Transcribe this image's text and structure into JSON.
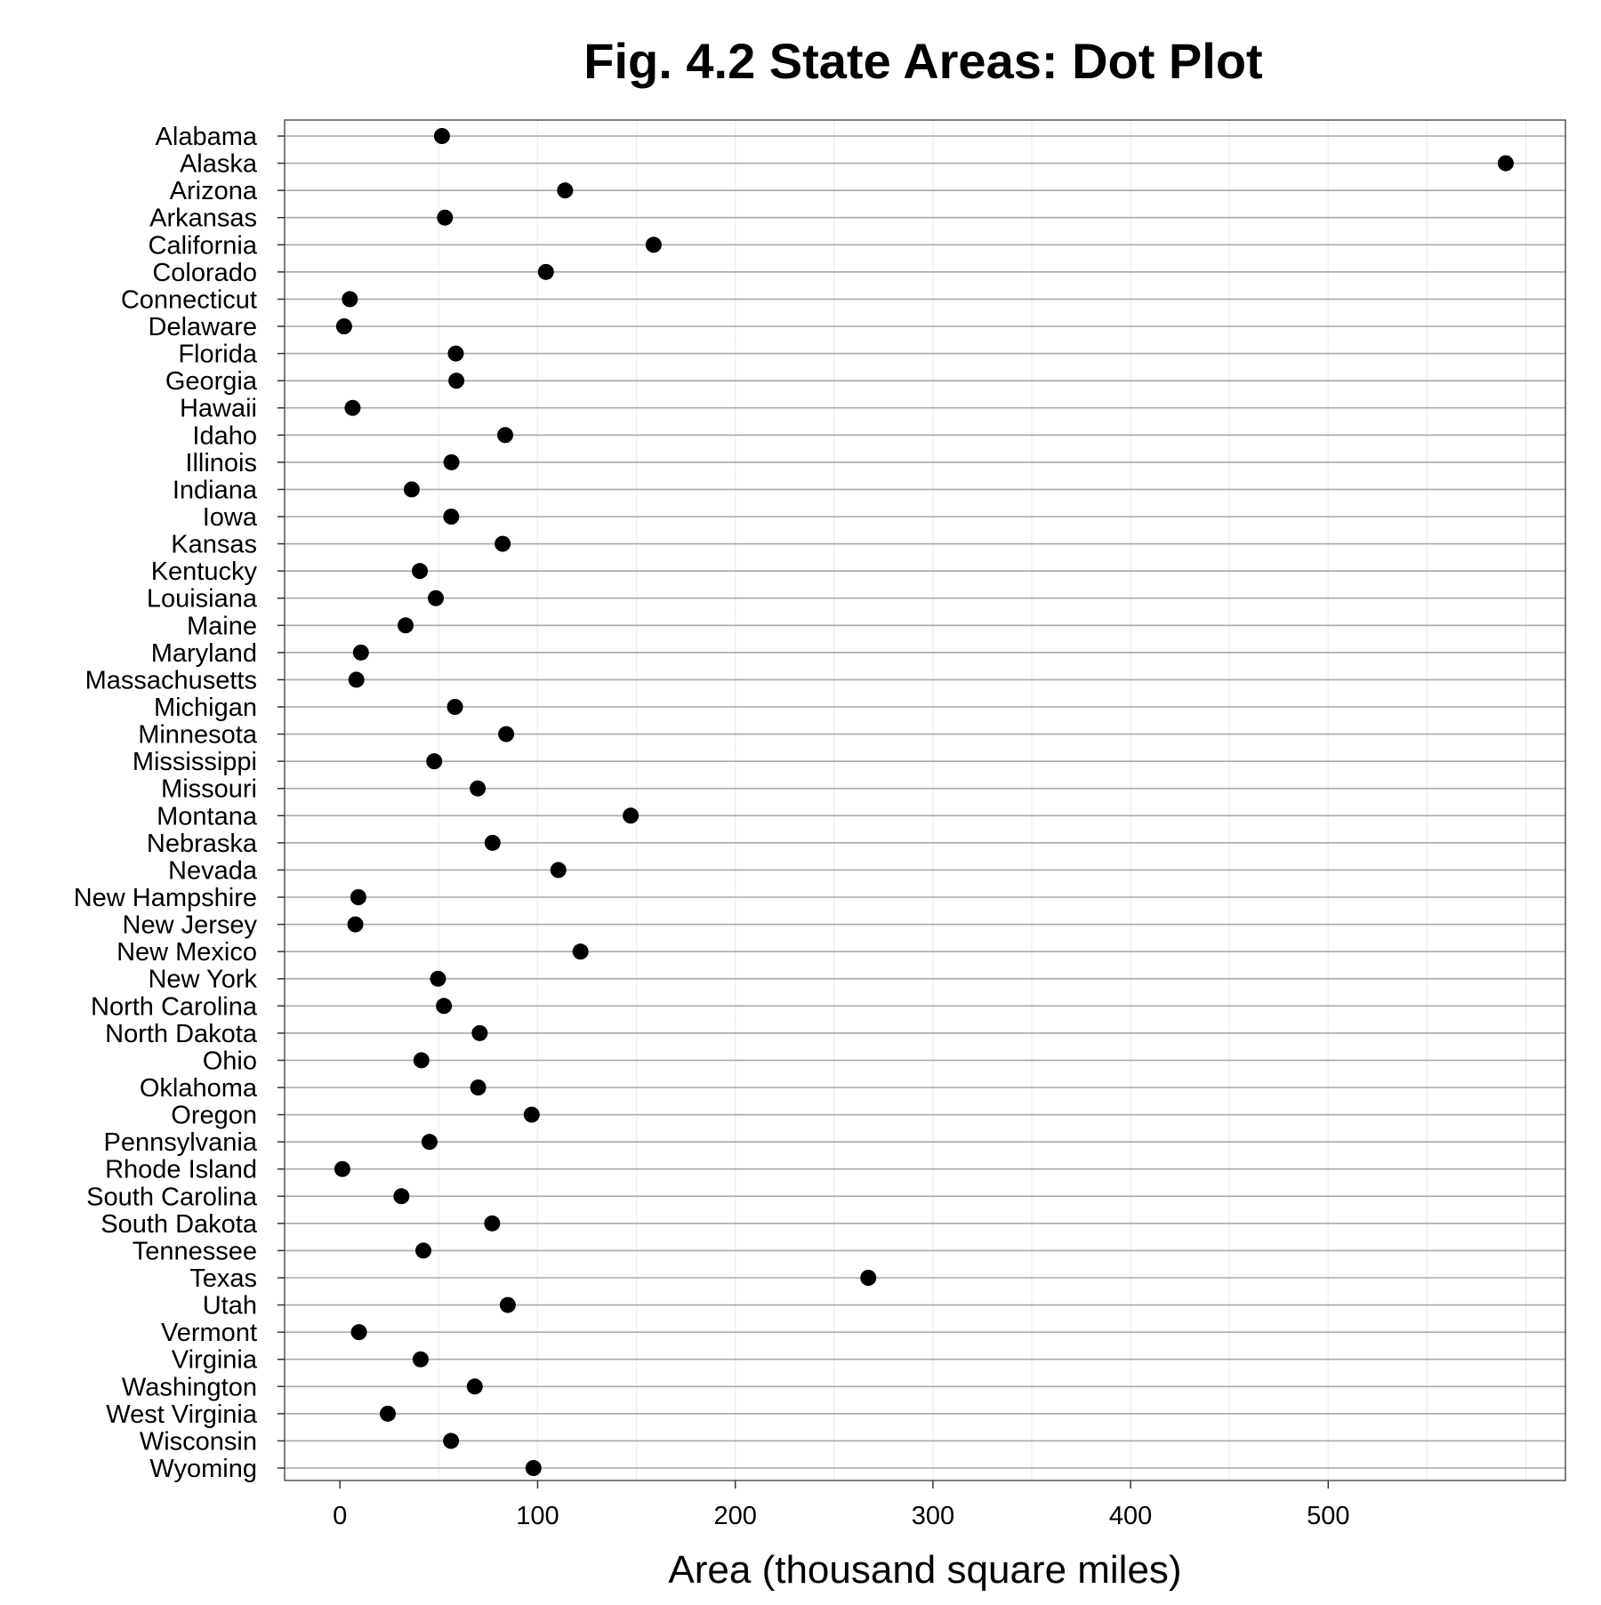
{
  "chart_data": {
    "type": "scatter",
    "title": "Fig. 4.2 State Areas: Dot Plot",
    "xlabel": "Area (thousand square miles)",
    "ylabel": "",
    "xlim": [
      -28,
      620
    ],
    "xticks": [
      0,
      100,
      200,
      300,
      400,
      500
    ],
    "xtick_labels": [
      "0",
      "100",
      "200",
      "300",
      "400",
      "500"
    ],
    "grid": true,
    "dot_color": "#000000",
    "categories": [
      "Alabama",
      "Alaska",
      "Arizona",
      "Arkansas",
      "California",
      "Colorado",
      "Connecticut",
      "Delaware",
      "Florida",
      "Georgia",
      "Hawaii",
      "Idaho",
      "Illinois",
      "Indiana",
      "Iowa",
      "Kansas",
      "Kentucky",
      "Louisiana",
      "Maine",
      "Maryland",
      "Massachusetts",
      "Michigan",
      "Minnesota",
      "Mississippi",
      "Missouri",
      "Montana",
      "Nebraska",
      "Nevada",
      "New Hampshire",
      "New Jersey",
      "New Mexico",
      "New York",
      "North Carolina",
      "North Dakota",
      "Ohio",
      "Oklahoma",
      "Oregon",
      "Pennsylvania",
      "Rhode Island",
      "South Carolina",
      "South Dakota",
      "Tennessee",
      "Texas",
      "Utah",
      "Vermont",
      "Virginia",
      "Washington",
      "West Virginia",
      "Wisconsin",
      "Wyoming"
    ],
    "values": [
      51.6,
      589.8,
      113.9,
      53.1,
      158.7,
      104.2,
      5.0,
      2.1,
      58.6,
      58.9,
      6.4,
      83.6,
      56.4,
      36.3,
      56.3,
      82.3,
      40.4,
      48.5,
      33.2,
      10.6,
      8.3,
      58.2,
      84.1,
      47.7,
      69.7,
      147.1,
      77.2,
      110.5,
      9.3,
      7.8,
      121.7,
      49.6,
      52.6,
      70.7,
      41.2,
      69.9,
      97.0,
      45.3,
      1.2,
      31.1,
      77.0,
      42.2,
      267.3,
      84.9,
      9.6,
      40.8,
      68.2,
      24.2,
      56.2,
      97.9
    ]
  }
}
